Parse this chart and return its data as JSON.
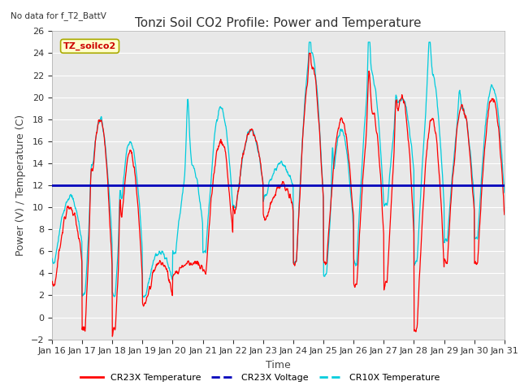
{
  "title": "Tonzi Soil CO2 Profile: Power and Temperature",
  "no_data_label": "No data for f_T2_BattV",
  "legend_box_label": "TZ_soilco2",
  "xlabel": "Time",
  "ylabel": "Power (V) / Temperature (C)",
  "ylim": [
    -2,
    26
  ],
  "yticks": [
    -2,
    0,
    2,
    4,
    6,
    8,
    10,
    12,
    14,
    16,
    18,
    20,
    22,
    24,
    26
  ],
  "xtick_labels": [
    "Jan 16",
    "Jan 17",
    "Jan 18",
    "Jan 19",
    "Jan 20",
    "Jan 21",
    "Jan 22",
    "Jan 23",
    "Jan 24",
    "Jan 25",
    "Jan 26",
    "Jan 27",
    "Jan 28",
    "Jan 29",
    "Jan 30",
    "Jan 31"
  ],
  "voltage_level": 12.0,
  "bg_color": "#e8e8e8",
  "grid_color": "#ffffff",
  "cr23x_color": "#ff0000",
  "cr10x_color": "#00ccdd",
  "voltage_color": "#0000bb",
  "legend_entries": [
    "CR23X Temperature",
    "CR23X Voltage",
    "CR10X Temperature"
  ],
  "legend_colors": [
    "#ff0000",
    "#0000bb",
    "#00ccdd"
  ],
  "title_fontsize": 11,
  "axis_label_fontsize": 9,
  "tick_fontsize": 8,
  "figsize": [
    6.4,
    4.8
  ],
  "dpi": 100
}
